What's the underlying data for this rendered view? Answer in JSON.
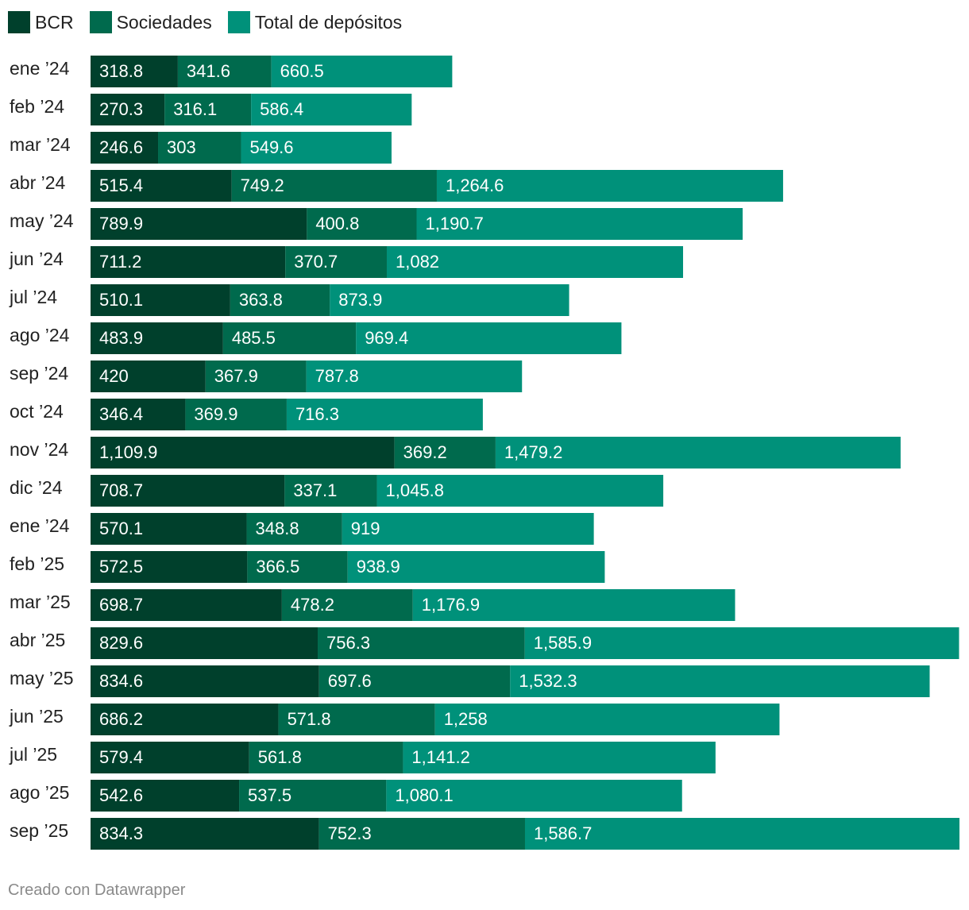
{
  "chart_data": {
    "type": "bar",
    "orientation": "horizontal",
    "stacked": true,
    "title": "",
    "xlabel": "",
    "ylabel": "",
    "legend_position": "top-left",
    "grid": false,
    "categories": [
      "ene ’24",
      "feb ’24",
      "mar ’24",
      "abr ’24",
      "may ’24",
      "jun ’24",
      "jul ’24",
      "ago ’24",
      "sep ’24",
      "oct ’24",
      "nov ’24",
      "dic ’24",
      "ene ’24",
      "feb ’25",
      "mar ’25",
      "abr ’25",
      "may ’25",
      "jun ’25",
      "jul ’25",
      "ago ’25",
      "sep ’25"
    ],
    "series": [
      {
        "name": "BCR",
        "color": "#00402c",
        "values": [
          318.8,
          270.3,
          246.6,
          515.4,
          789.9,
          711.2,
          510.1,
          483.9,
          420,
          346.4,
          1109.9,
          708.7,
          570.1,
          572.5,
          698.7,
          829.6,
          834.6,
          686.2,
          579.4,
          542.6,
          834.3
        ],
        "labels": [
          "318.8",
          "270.3",
          "246.6",
          "515.4",
          "789.9",
          "711.2",
          "510.1",
          "483.9",
          "420",
          "346.4",
          "1,109.9",
          "708.7",
          "570.1",
          "572.5",
          "698.7",
          "829.6",
          "834.6",
          "686.2",
          "579.4",
          "542.6",
          "834.3"
        ]
      },
      {
        "name": "Sociedades",
        "color": "#006a4d",
        "values": [
          341.6,
          316.1,
          303,
          749.2,
          400.8,
          370.7,
          363.8,
          485.5,
          367.9,
          369.9,
          369.2,
          337.1,
          348.8,
          366.5,
          478.2,
          756.3,
          697.6,
          571.8,
          561.8,
          537.5,
          752.3
        ],
        "labels": [
          "341.6",
          "316.1",
          "303",
          "749.2",
          "400.8",
          "370.7",
          "363.8",
          "485.5",
          "367.9",
          "369.9",
          "369.2",
          "337.1",
          "348.8",
          "366.5",
          "478.2",
          "756.3",
          "697.6",
          "571.8",
          "561.8",
          "537.5",
          "752.3"
        ]
      },
      {
        "name": "Total de depósitos",
        "color": "#00917a",
        "values": [
          660.5,
          586.4,
          549.6,
          1264.6,
          1190.7,
          1082,
          873.9,
          969.4,
          787.8,
          716.3,
          1479.2,
          1045.8,
          919,
          938.9,
          1176.9,
          1585.9,
          1532.3,
          1258,
          1141.2,
          1080.1,
          1586.7
        ],
        "labels": [
          "660.5",
          "586.4",
          "549.6",
          "1,264.6",
          "1,190.7",
          "1,082",
          "873.9",
          "969.4",
          "787.8",
          "716.3",
          "1,479.2",
          "1,045.8",
          "919",
          "938.9",
          "1,176.9",
          "1,585.9",
          "1,532.3",
          "1,258",
          "1,141.2",
          "1,080.1",
          "1,586.7"
        ]
      }
    ]
  },
  "footer": {
    "credit": "Creado con Datawrapper"
  }
}
